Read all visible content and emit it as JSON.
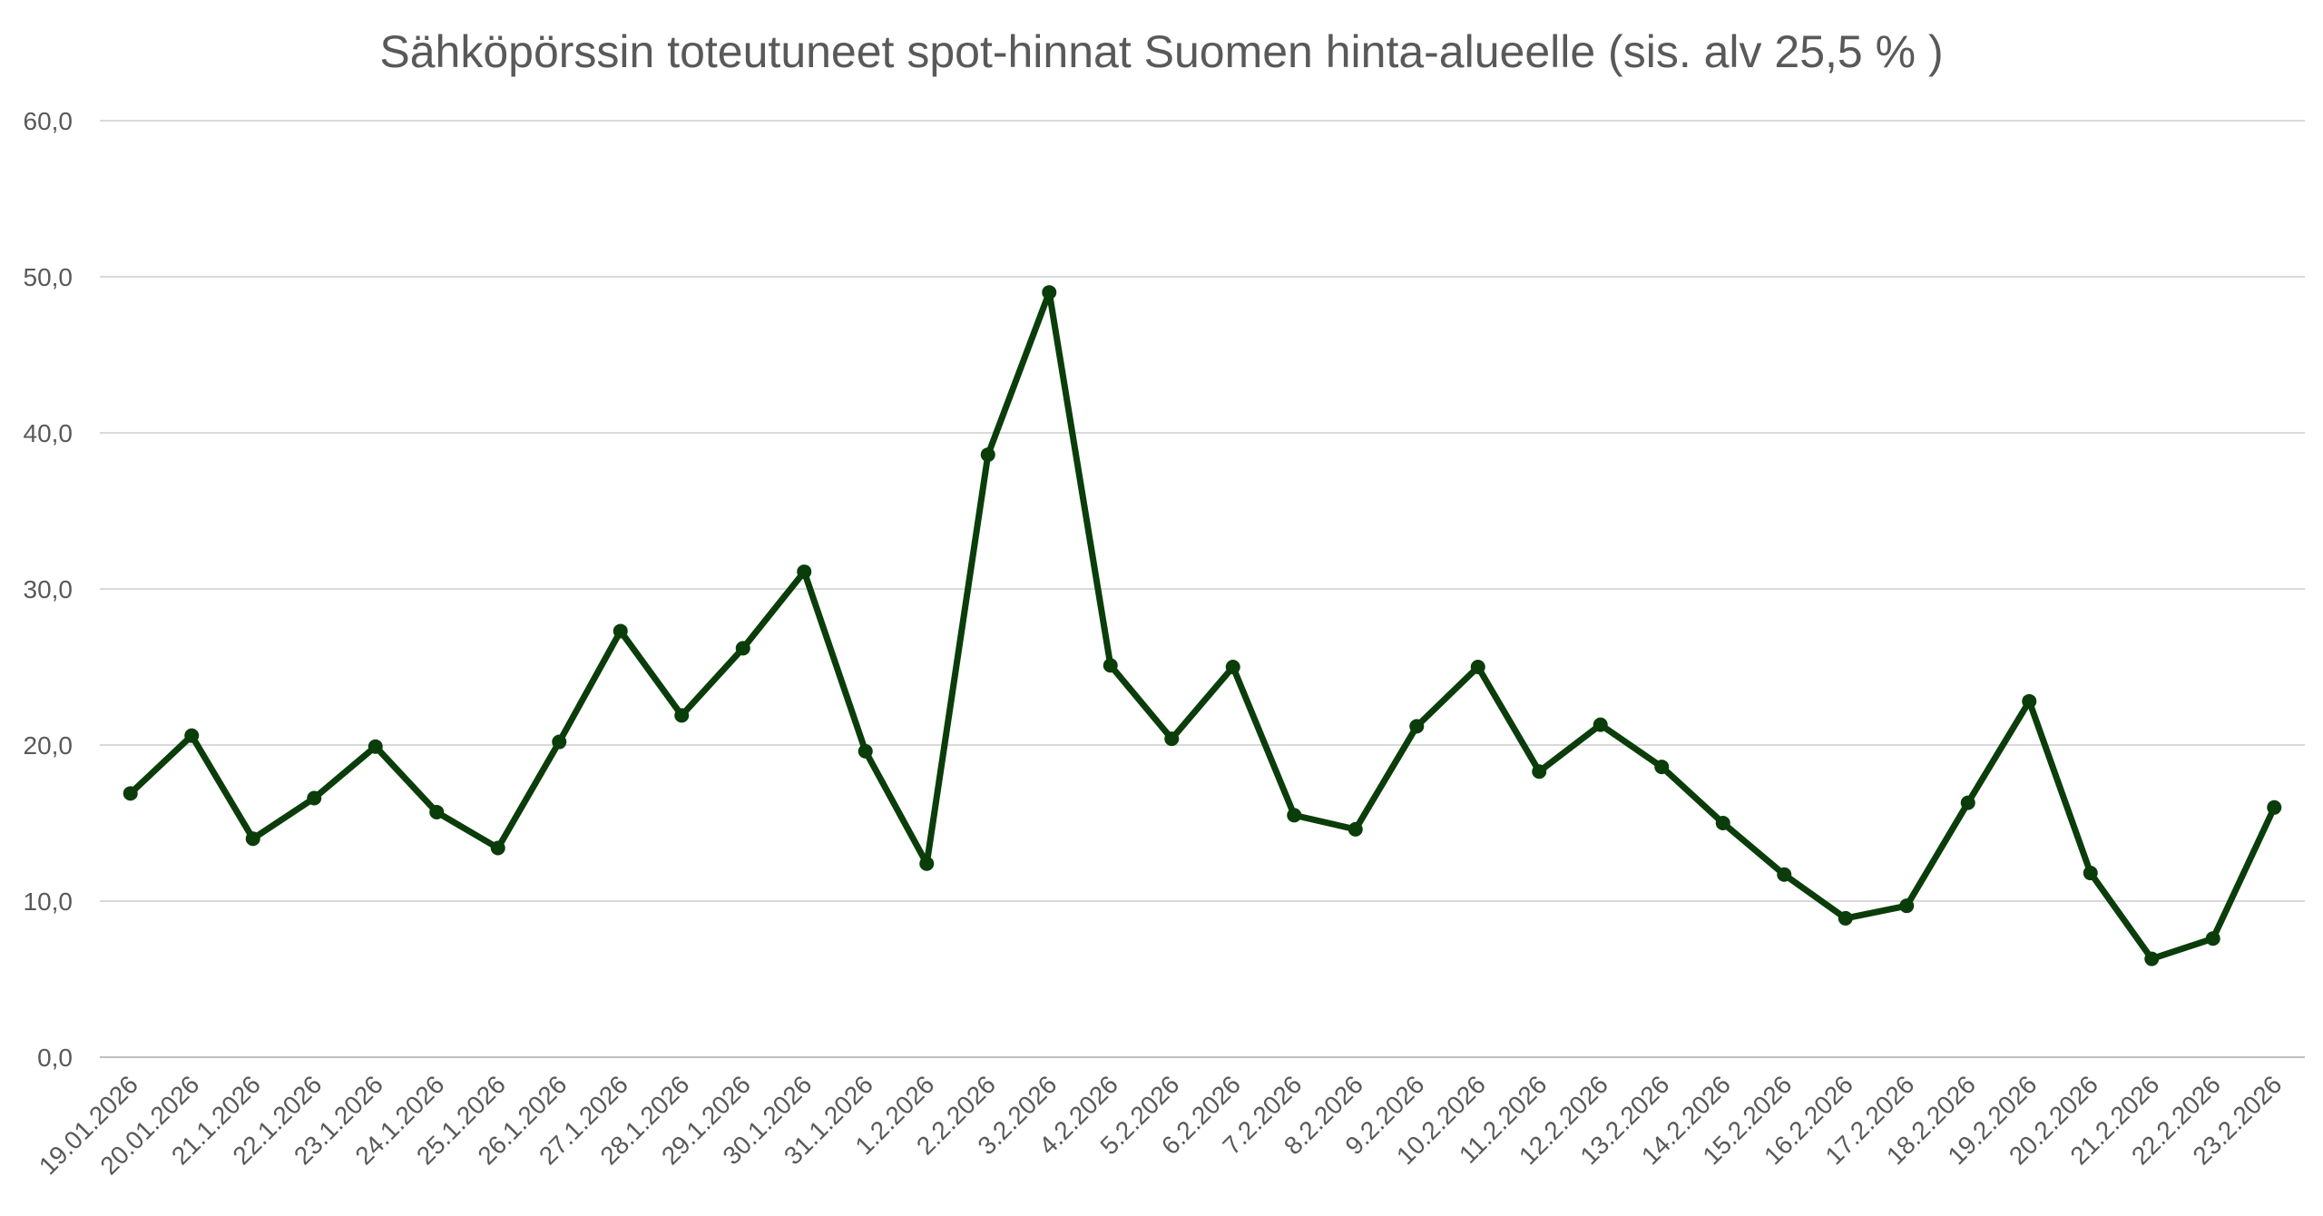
{
  "chart_data": {
    "type": "line",
    "title": "Sähköpörssin toteutuneet spot-hinnat Suomen hinta-alueelle (sis. alv 25,5 % )",
    "xlabel": "",
    "ylabel": "",
    "ylim": [
      0,
      60
    ],
    "yticks": [
      "0,0",
      "10,0",
      "20,0",
      "30,0",
      "40,0",
      "50,0",
      "60,0"
    ],
    "grid": true,
    "legend": "none",
    "categories": [
      "19.01.2026",
      "20.01.2026",
      "21.1.2026",
      "22.1.2026",
      "23.1.2026",
      "24.1.2026",
      "25.1.2026",
      "26.1.2026",
      "27.1.2026",
      "28.1.2026",
      "29.1.2026",
      "30.1.2026",
      "31.1.2026",
      "1.2.2026",
      "2.2.2026",
      "3.2.2026",
      "4.2.2026",
      "5.2.2026",
      "6.2.2026",
      "7.2.2026",
      "8.2.2026",
      "9.2.2026",
      "10.2.2026",
      "11.2.2026",
      "12.2.2026",
      "13.2.2026",
      "14.2.2026",
      "15.2.2026",
      "16.2.2026",
      "17.2.2026",
      "18.2.2026",
      "19.2.2026",
      "20.2.2026",
      "21.2.2026",
      "22.2.2026",
      "23.2.2026"
    ],
    "series": [
      {
        "color": "#0b3d0b",
        "values": [
          16.9,
          20.6,
          14.0,
          16.6,
          19.9,
          15.7,
          13.4,
          20.2,
          27.3,
          21.9,
          26.2,
          31.1,
          19.6,
          12.4,
          38.6,
          49.0,
          25.1,
          20.4,
          25.0,
          15.5,
          14.6,
          21.2,
          25.0,
          18.3,
          21.3,
          18.6,
          15.0,
          11.7,
          8.9,
          9.7,
          16.3,
          22.8,
          11.8,
          6.3,
          7.6,
          16.0
        ]
      }
    ]
  }
}
